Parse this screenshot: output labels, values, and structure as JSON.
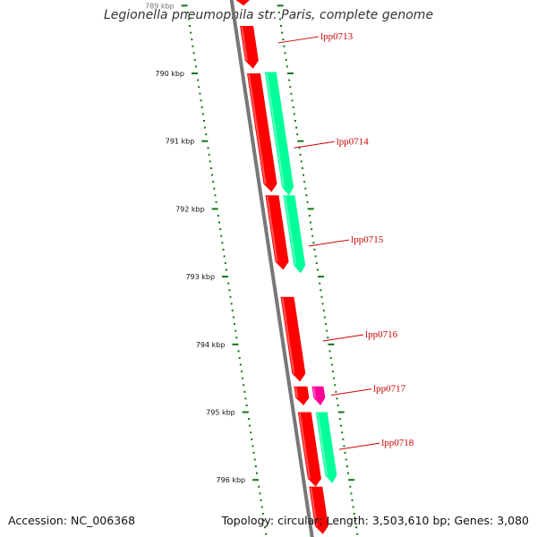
{
  "title": "Legionella pneumophila str. Paris, complete genome",
  "footer": {
    "accession": "Accession: NC_006368",
    "summary": "Topology: circular; Length: 3,503,610 bp; Genes: 3,080"
  },
  "colors": {
    "cds_forward": "#ff0000",
    "cds_reverse": "#00ff99",
    "gene_other": "#ff0099",
    "backbone": "#777777",
    "ticks": "#117711",
    "label": "#cc0000"
  },
  "axis": {
    "ticks": [
      {
        "kbp": 789,
        "label": "789 kbp"
      },
      {
        "kbp": 790,
        "label": "790 kbp"
      },
      {
        "kbp": 791,
        "label": "791 kbp"
      },
      {
        "kbp": 792,
        "label": "792 kbp"
      },
      {
        "kbp": 793,
        "label": "793 kbp"
      },
      {
        "kbp": 794,
        "label": "794 kbp"
      },
      {
        "kbp": 795,
        "label": "795 kbp"
      },
      {
        "kbp": 796,
        "label": "796 kbp"
      }
    ]
  },
  "features": [
    {
      "strand": "forward",
      "start": 788.8,
      "end": 789.0,
      "type": "cds"
    },
    {
      "strand": "forward",
      "start": 789.3,
      "end": 789.93,
      "type": "cds"
    },
    {
      "strand": "forward",
      "start": 790.0,
      "end": 791.75,
      "type": "cds"
    },
    {
      "strand": "reverse",
      "start": 789.98,
      "end": 791.8,
      "type": "cds"
    },
    {
      "strand": "forward",
      "start": 791.8,
      "end": 792.9,
      "type": "cds"
    },
    {
      "strand": "reverse",
      "start": 791.8,
      "end": 792.95,
      "type": "cds"
    },
    {
      "strand": "forward",
      "start": 793.3,
      "end": 794.55,
      "type": "cds"
    },
    {
      "strand": "forward",
      "start": 794.62,
      "end": 794.9,
      "type": "cds"
    },
    {
      "strand": "reverse",
      "start": 794.62,
      "end": 794.9,
      "type": "other"
    },
    {
      "strand": "forward",
      "start": 795.0,
      "end": 796.1,
      "type": "cds"
    },
    {
      "strand": "reverse",
      "start": 795.0,
      "end": 796.05,
      "type": "cds"
    },
    {
      "strand": "forward",
      "start": 796.1,
      "end": 796.8,
      "type": "cds"
    }
  ],
  "labels": [
    {
      "text": "lpp0713",
      "kbp": 789.55
    },
    {
      "text": "lpp0714",
      "kbp": 791.1
    },
    {
      "text": "lpp0715",
      "kbp": 792.55
    },
    {
      "text": "lpp0716",
      "kbp": 793.95
    },
    {
      "text": "lpp0717",
      "kbp": 794.75
    },
    {
      "text": "lpp0718",
      "kbp": 795.55
    }
  ]
}
